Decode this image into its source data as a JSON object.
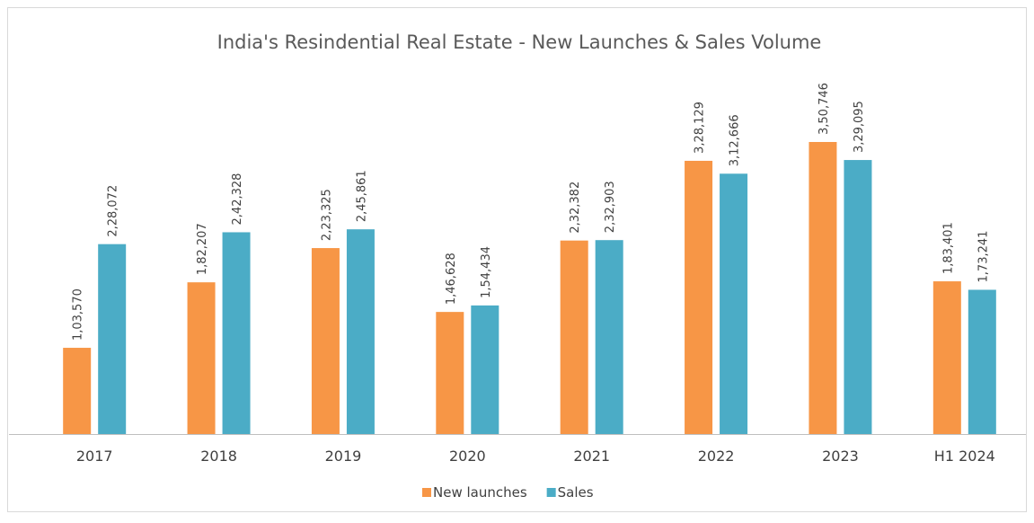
{
  "chart_data": {
    "type": "bar",
    "title": "India's Resindential Real Estate - New Launches & Sales Volume",
    "categories": [
      "2017",
      "2018",
      "2019",
      "2020",
      "2021",
      "2022",
      "2023",
      "H1 2024"
    ],
    "series": [
      {
        "name": "New launches",
        "color": "#f79646",
        "values": [
          103570,
          182207,
          223325,
          146628,
          232382,
          328129,
          350746,
          183401
        ],
        "value_labels": [
          "1,03,570",
          "1,82,207",
          "2,23,325",
          "1,46,628",
          "2,32,382",
          "3,28,129",
          "3,50,746",
          "1,83,401"
        ]
      },
      {
        "name": "Sales",
        "color": "#4bacc6",
        "values": [
          228072,
          242328,
          245861,
          154434,
          232903,
          312666,
          329095,
          173241
        ],
        "value_labels": [
          "2,28,072",
          "2,42,328",
          "2,45,861",
          "1,54,434",
          "2,32,903",
          "3,12,666",
          "3,29,095",
          "1,73,241"
        ]
      }
    ],
    "legend": "bottom"
  }
}
